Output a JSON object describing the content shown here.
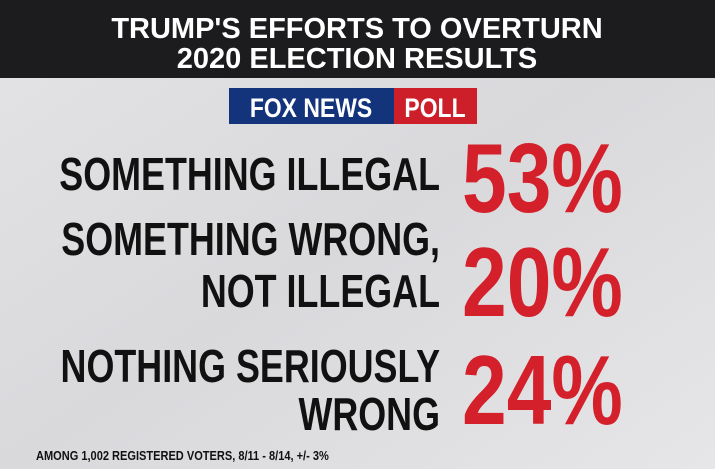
{
  "header": {
    "title_lines": [
      "TRUMP'S EFFORTS TO OVERTURN",
      "2020 ELECTION RESULTS"
    ]
  },
  "logo": {
    "brand": "FOX NEWS",
    "tag": "POLL"
  },
  "rows": [
    {
      "label_lines": [
        "SOMETHING ILLEGAL"
      ],
      "value": "53%"
    },
    {
      "label_lines": [
        "SOMETHING WRONG,",
        "NOT ILLEGAL"
      ],
      "value": "20%"
    },
    {
      "label_lines": [
        "NOTHING SERIOUSLY",
        "WRONG"
      ],
      "value": "24%"
    }
  ],
  "footnote": "AMONG 1,002 REGISTERED VOTERS, 8/11 - 8/14, +/- 3%"
}
